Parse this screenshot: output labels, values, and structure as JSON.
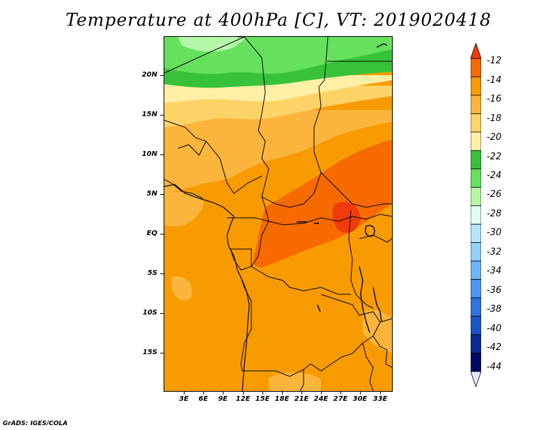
{
  "title": "Temperature at 400hPa [C], VT: 2019020418",
  "credit": "GrADS: IGES/COLA",
  "map": {
    "lat_labels": [
      "20N",
      "15N",
      "10N",
      "5N",
      "EQ",
      "5S",
      "10S",
      "15S"
    ],
    "lon_labels": [
      "3E",
      "6E",
      "9E",
      "12E",
      "15E",
      "18E",
      "21E",
      "24E",
      "27E",
      "30E",
      "33E"
    ],
    "region": "Central Africa"
  },
  "colorbar": {
    "labels": [
      "-12",
      "-14",
      "-16",
      "-18",
      "-20",
      "-22",
      "-24",
      "-26",
      "-28",
      "-30",
      "-32",
      "-34",
      "-36",
      "-38",
      "-40",
      "-42",
      "-44"
    ],
    "colors": [
      "#f03c0a",
      "#f76a00",
      "#f89b00",
      "#fbb43c",
      "#fed468",
      "#fff0a5",
      "#38c23a",
      "#66e15e",
      "#b4f7a8",
      "#e1fff5",
      "#b4e6fe",
      "#93d0fb",
      "#6eb5f7",
      "#4c96ef",
      "#2f74e0",
      "#1955c7",
      "#0b2a95",
      "#000a64",
      "#e6e6fa"
    ]
  }
}
